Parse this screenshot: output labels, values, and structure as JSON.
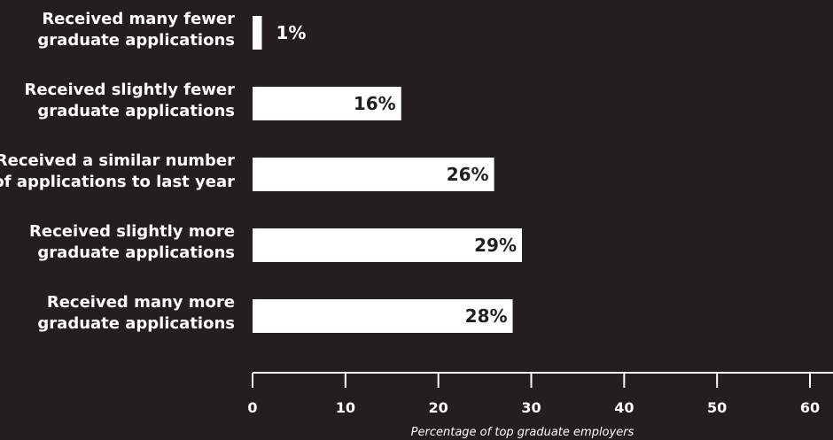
{
  "chart_data": {
    "type": "bar",
    "orientation": "horizontal",
    "categories": [
      [
        "Received many fewer",
        "graduate applications"
      ],
      [
        "Received slightly fewer",
        "graduate applications"
      ],
      [
        "Received a similar number",
        "of applications to last year"
      ],
      [
        "Received slightly more",
        "graduate applications"
      ],
      [
        "Received many more",
        "graduate applications"
      ]
    ],
    "values": [
      1,
      16,
      26,
      29,
      28
    ],
    "value_labels": [
      "1%",
      "16%",
      "26%",
      "29%",
      "28%"
    ],
    "xlabel": "Percentage of top graduate employers",
    "xlim": [
      0,
      60
    ],
    "xticks": [
      0,
      10,
      20,
      30,
      40,
      50,
      60
    ],
    "grid": false,
    "colors": {
      "background": "#231f20",
      "bar": "#ffffff",
      "text": "#ffffff",
      "label_on_bar": "#231f20"
    }
  }
}
